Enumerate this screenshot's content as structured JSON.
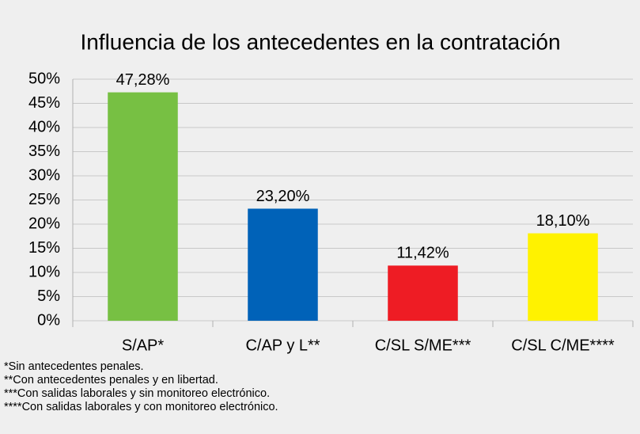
{
  "chart_data": {
    "type": "bar",
    "title": "Influencia de los antecedentes en la contratación",
    "categories": [
      "S/AP*",
      "C/AP y L**",
      "C/SL S/ME***",
      "C/SL C/ME****"
    ],
    "values": [
      47.28,
      23.2,
      11.42,
      18.1
    ],
    "value_labels": [
      "47,28%",
      "23,20%",
      "11,42%",
      "18,10%"
    ],
    "colors": [
      "#77c043",
      "#0062b8",
      "#ee1c24",
      "#fff200"
    ],
    "ylim": [
      0,
      50
    ],
    "yticks": [
      {
        "value": 0,
        "label": "0%"
      },
      {
        "value": 5,
        "label": "5%"
      },
      {
        "value": 10,
        "label": "10%"
      },
      {
        "value": 15,
        "label": "15%"
      },
      {
        "value": 20,
        "label": "20%"
      },
      {
        "value": 25,
        "label": "25%"
      },
      {
        "value": 30,
        "label": "30%"
      },
      {
        "value": 35,
        "label": "35%"
      },
      {
        "value": 40,
        "label": "40%"
      },
      {
        "value": 45,
        "label": "45%"
      },
      {
        "value": 50,
        "label": "50%"
      }
    ],
    "grid": true,
    "annotations": [
      "*Sin antecedentes penales.",
      "**Con antecedentes penales y en libertad.",
      "***Con salidas laborales y sin monitoreo electrónico.",
      "****Con salidas laborales y con monitoreo electrónico."
    ]
  }
}
